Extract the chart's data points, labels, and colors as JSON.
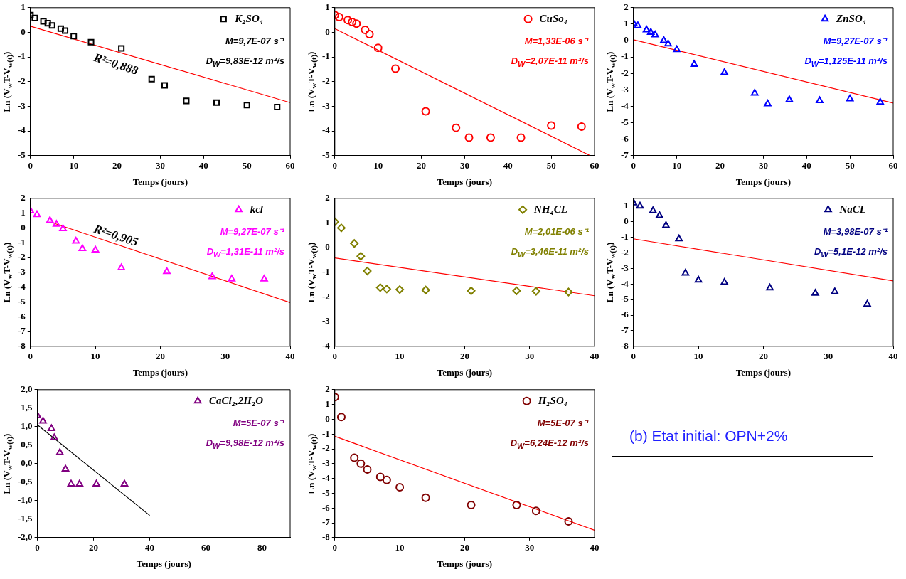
{
  "chart_data": [
    {
      "type": "scatter",
      "xlabel": "Temps (jours)",
      "ylabel": "Ln (V$_{w}$T-V$_{w(t)}$)",
      "xlim": [
        0,
        60
      ],
      "xticks": [
        0,
        10,
        20,
        30,
        40,
        50,
        60
      ],
      "ylim": [
        -5,
        1
      ],
      "yticks": [
        -5,
        -4,
        -3,
        -2,
        -1,
        0,
        1
      ],
      "legend": "top right",
      "annotations": [
        "M=9,7E-07 s⁻¹",
        "D$_{W}$=9,83E-12 m²/s",
        "R²=0,888"
      ],
      "series": [
        {
          "name": "K₂SO₄",
          "type": "scatter",
          "marker": "square",
          "color": "#000000",
          "x": [
            0,
            1,
            3,
            4,
            5,
            7,
            8,
            10,
            14,
            21,
            28,
            31,
            36,
            43,
            50,
            57
          ],
          "values": [
            0.7,
            0.58,
            0.45,
            0.37,
            0.28,
            0.15,
            0.07,
            -0.15,
            -0.4,
            -0.65,
            -1.9,
            -2.15,
            -2.78,
            -2.85,
            -2.95,
            -3.03
          ]
        },
        {
          "type": "line",
          "marker": "none",
          "color": "#ff0000",
          "x": [
            0,
            60
          ],
          "values": [
            0.25,
            -2.85
          ]
        }
      ]
    },
    {
      "type": "scatter",
      "xlabel": "Temps (jours)",
      "ylabel": "Ln (V$_{w}$T-V$_{w(t)}$)",
      "xlim": [
        0,
        60
      ],
      "xticks": [
        0,
        10,
        20,
        30,
        40,
        50,
        60
      ],
      "ylim": [
        -5,
        1
      ],
      "yticks": [
        -5,
        -4,
        -3,
        -2,
        -1,
        0,
        1
      ],
      "legend": "top right",
      "annotations": [
        "M=1,33E-06 s⁻¹",
        "D$_{W}$=2,07E-11 m²/s"
      ],
      "series": [
        {
          "name": "CuSo₄",
          "type": "scatter",
          "marker": "circle",
          "color": "#ff0000",
          "x": [
            0,
            1,
            3,
            4,
            5,
            7,
            8,
            10,
            14,
            21,
            28,
            31,
            36,
            43,
            50,
            57
          ],
          "values": [
            0.7,
            0.62,
            0.5,
            0.42,
            0.35,
            0.1,
            -0.07,
            -0.63,
            -1.47,
            -3.2,
            -3.87,
            -4.27,
            -4.27,
            -4.27,
            -3.78,
            -3.82
          ]
        },
        {
          "type": "line",
          "marker": "none",
          "color": "#ff0000",
          "x": [
            0,
            59
          ],
          "values": [
            0.15,
            -5
          ]
        }
      ]
    },
    {
      "type": "scatter",
      "xlabel": "Temps (jours)",
      "ylabel": "Ln (V$_{w}$T-V$_{w(t)}$)",
      "xlim": [
        0,
        60
      ],
      "xticks": [
        0,
        10,
        20,
        30,
        40,
        50,
        60
      ],
      "ylim": [
        -7,
        2
      ],
      "yticks": [
        -7,
        -6,
        -5,
        -4,
        -3,
        -2,
        -1,
        0,
        1,
        2
      ],
      "legend": "top right",
      "annotations": [
        "M=9,27E-07 s⁻¹",
        "D$_{W}$=1,125E-11 m²/s"
      ],
      "series": [
        {
          "name": "ZnSO₄",
          "type": "scatter",
          "marker": "triangle",
          "color": "#0000ff",
          "x": [
            0,
            1,
            3,
            4,
            5,
            7,
            8,
            10,
            14,
            21,
            28,
            31,
            36,
            43,
            50,
            57
          ],
          "values": [
            1.05,
            0.9,
            0.65,
            0.5,
            0.35,
            0.0,
            -0.2,
            -0.55,
            -1.45,
            -1.95,
            -3.2,
            -3.85,
            -3.6,
            -3.65,
            -3.55,
            -3.75
          ]
        },
        {
          "type": "line",
          "marker": "none",
          "color": "#ff0000",
          "x": [
            0,
            60
          ],
          "values": [
            0.05,
            -3.8
          ]
        }
      ]
    },
    {
      "type": "scatter",
      "xlabel": "Temps (jours)",
      "ylabel": "Ln (V$_{w}$T-V$_{w(t)}$)",
      "xlim": [
        0,
        40
      ],
      "xticks": [
        0,
        10,
        20,
        30,
        40
      ],
      "ylim": [
        -8,
        2
      ],
      "yticks": [
        -8,
        -7,
        -6,
        -5,
        -4,
        -3,
        -2,
        -1,
        0,
        1,
        2
      ],
      "legend": "top right",
      "annotations": [
        "M=9,27E-07 s⁻¹",
        "D$_{W}$=1,31E-11 m²/s",
        "R²=0,905"
      ],
      "series": [
        {
          "name": "kcl",
          "type": "scatter",
          "marker": "triangle",
          "color": "#ff00ff",
          "x": [
            0,
            1,
            3,
            4,
            5,
            7,
            8,
            10,
            14,
            21,
            28,
            31,
            36
          ],
          "values": [
            1.15,
            0.9,
            0.5,
            0.25,
            -0.05,
            -0.9,
            -1.4,
            -1.5,
            -2.7,
            -2.95,
            -3.3,
            -3.45,
            -3.45
          ]
        },
        {
          "type": "line",
          "marker": "none",
          "color": "#ff0000",
          "x": [
            3.5,
            40
          ],
          "values": [
            0.33,
            -5.05
          ]
        }
      ]
    },
    {
      "type": "scatter",
      "xlabel": "Temps (jours)",
      "ylabel": "Ln (V$_{w}$T-V$_{w(t)}$)",
      "xlim": [
        0,
        40
      ],
      "xticks": [
        0,
        10,
        20,
        30,
        40
      ],
      "ylim": [
        -4,
        2
      ],
      "yticks": [
        -4,
        -3,
        -2,
        -1,
        0,
        1,
        2
      ],
      "legend": "top right",
      "annotations": [
        "M=2,01E-06 s⁻¹",
        "D$_{W}$=3,46E-11 m²/s"
      ],
      "series": [
        {
          "name": "NH₄CL",
          "type": "scatter",
          "marker": "diamond",
          "color": "#808000",
          "x": [
            0,
            1,
            3,
            4,
            5,
            7,
            8,
            10,
            14,
            21,
            28,
            31,
            36
          ],
          "values": [
            1.05,
            0.8,
            0.17,
            -0.35,
            -0.95,
            -1.62,
            -1.68,
            -1.7,
            -1.72,
            -1.75,
            -1.75,
            -1.77,
            -1.8
          ]
        },
        {
          "type": "line",
          "marker": "none",
          "color": "#ff0000",
          "x": [
            0,
            40
          ],
          "values": [
            -0.42,
            -1.95
          ]
        }
      ]
    },
    {
      "type": "scatter",
      "xlabel": "Temps (jours)",
      "ylabel": "Ln (V$_{w}$T-V$_{w(t)}$)",
      "xlim": [
        0,
        40
      ],
      "xticks": [
        0,
        10,
        20,
        30,
        40
      ],
      "ylim": [
        -8,
        1.5
      ],
      "yticks": [
        -8,
        -7,
        -6,
        -5,
        -4,
        -3,
        -2,
        -1,
        0,
        1
      ],
      "legend": "top right",
      "annotations": [
        "M=3,98E-07 s⁻¹",
        "D$_{W}$=5,1E-12 m²/s"
      ],
      "series": [
        {
          "name": "NaCL",
          "type": "scatter",
          "marker": "triangle",
          "color": "#000080",
          "x": [
            0,
            1,
            3,
            4,
            5,
            7,
            8,
            10,
            14,
            21,
            28,
            31,
            36
          ],
          "values": [
            1.2,
            1.0,
            0.7,
            0.4,
            -0.25,
            -1.1,
            -3.3,
            -3.75,
            -3.9,
            -4.25,
            -4.6,
            -4.5,
            -5.3
          ]
        },
        {
          "type": "line",
          "marker": "none",
          "color": "#ff0000",
          "x": [
            0,
            40
          ],
          "values": [
            -1.1,
            -3.8
          ]
        }
      ]
    },
    {
      "type": "scatter",
      "xlabel": "Temps (jours)",
      "ylabel": "Ln (V$_{w}$T-V$_{w(t)}$)",
      "xlim": [
        0,
        90
      ],
      "xticks": [
        0,
        20,
        40,
        60,
        80
      ],
      "ylim": [
        -2,
        2
      ],
      "yticks": [
        {
          "value": -2,
          "label": "-2,0"
        },
        {
          "value": -1.5,
          "label": "-1,5"
        },
        {
          "value": -1,
          "label": "-1,0"
        },
        {
          "value": -0.5,
          "label": "-0,5"
        },
        {
          "value": 0,
          "label": "0,0"
        },
        {
          "value": 0.5,
          "label": "0,5"
        },
        {
          "value": 1,
          "label": "1,0"
        },
        {
          "value": 1.5,
          "label": "1,5"
        },
        {
          "value": 2,
          "label": "2,0"
        }
      ],
      "legend": "top right",
      "annotations": [
        "M=5E-07 s⁻¹",
        "D$_{W}$=9,98E-12 m²/s"
      ],
      "series": [
        {
          "name": "CaCl₂,2H₂O",
          "type": "scatter",
          "marker": "triangle",
          "color": "#800080",
          "x": [
            0,
            2,
            5,
            6,
            8,
            10,
            12,
            15,
            21,
            31
          ],
          "values": [
            1.3,
            1.15,
            0.95,
            0.7,
            0.3,
            -0.15,
            -0.55,
            -0.55,
            -0.55,
            -0.55
          ]
        },
        {
          "type": "line",
          "marker": "none",
          "color": "#000000",
          "x": [
            0,
            40
          ],
          "values": [
            1.05,
            -1.4
          ]
        }
      ]
    },
    {
      "type": "scatter",
      "xlabel": "Temps (jours)",
      "ylabel": "Ln (V$_{w}$T-V$_{w(t)}$)",
      "xlim": [
        0,
        40
      ],
      "xticks": [
        0,
        10,
        20,
        30,
        40
      ],
      "ylim": [
        -8,
        2
      ],
      "yticks": [
        -8,
        -7,
        -6,
        -5,
        -4,
        -3,
        -2,
        -1,
        0,
        1,
        2
      ],
      "legend": "top right",
      "annotations": [
        "M=5E-07 s⁻¹",
        "D$_{W}$=6,24E-12 m²/s"
      ],
      "series": [
        {
          "name": "H₂SO₄",
          "type": "scatter",
          "marker": "circle",
          "color": "#800000",
          "x": [
            0,
            1,
            3,
            4,
            5,
            7,
            8,
            10,
            14,
            21,
            28,
            31,
            36
          ],
          "values": [
            1.5,
            0.15,
            -2.6,
            -3.0,
            -3.4,
            -3.9,
            -4.1,
            -4.6,
            -5.3,
            -5.8,
            -5.8,
            -6.2,
            -6.9
          ]
        },
        {
          "type": "line",
          "marker": "none",
          "color": "#ff0000",
          "x": [
            0,
            40
          ],
          "values": [
            -1.15,
            -7.5
          ]
        }
      ]
    },
    {
      "type": "other",
      "title": "(b) Etat initial: OPN+2%"
    }
  ]
}
